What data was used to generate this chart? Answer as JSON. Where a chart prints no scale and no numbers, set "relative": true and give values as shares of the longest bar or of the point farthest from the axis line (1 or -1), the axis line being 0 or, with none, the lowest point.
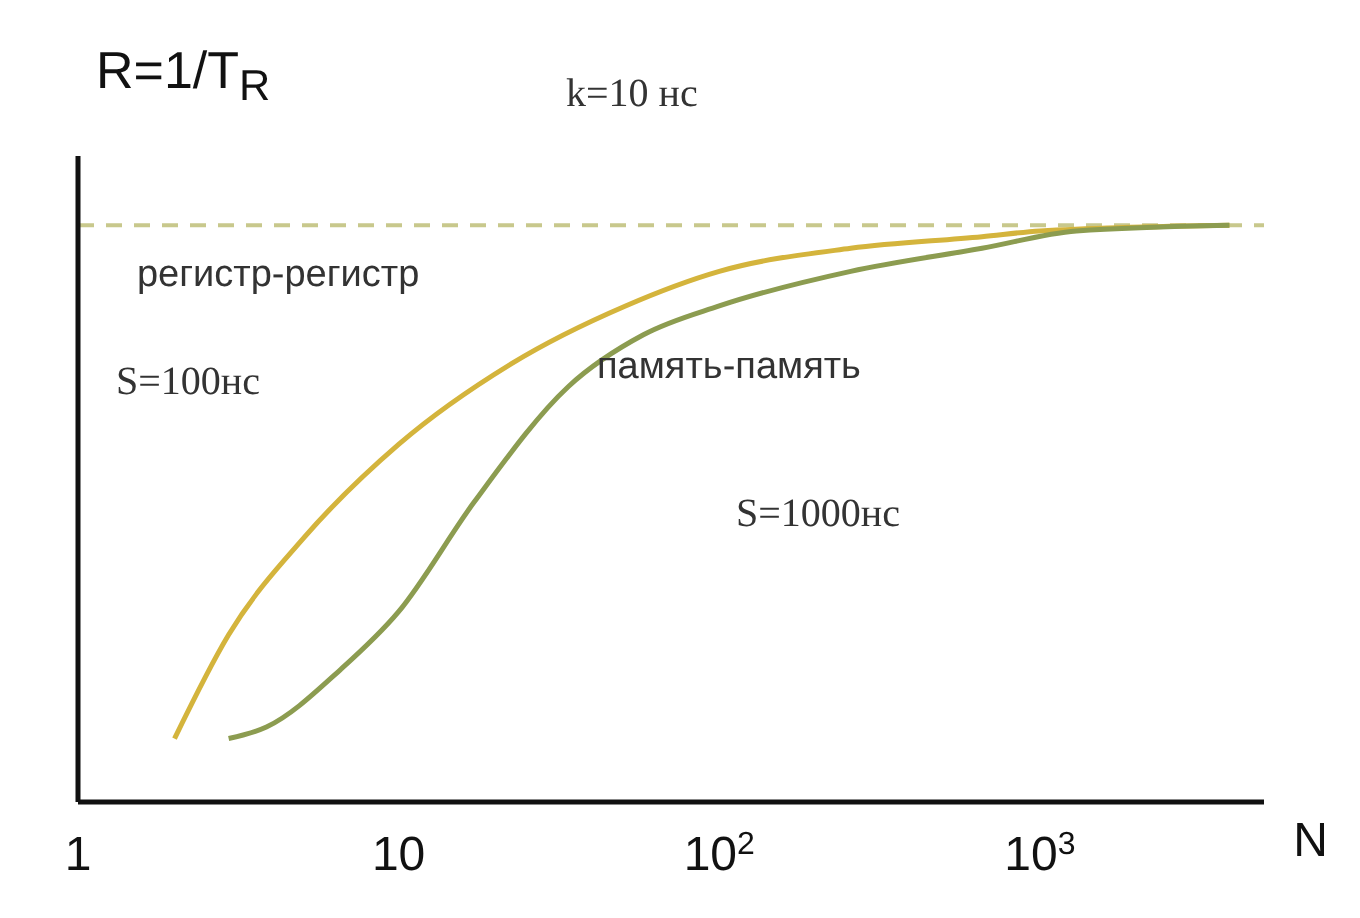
{
  "chart_data": {
    "type": "line",
    "ylabel": "R=1/T$_{R}$",
    "xlabel": "N",
    "log": "x",
    "relative": true,
    "xlim": [
      1,
      5000
    ],
    "xticks": [
      1,
      10,
      {
        "value": 100,
        "label": "10$^{2}$"
      },
      {
        "value": 1000,
        "label": "10$^{3}$"
      }
    ],
    "grid": false,
    "marker": "none",
    "line_style": "solid",
    "series": [
      {
        "name": "регистр-регистр",
        "color": "#d4b43c",
        "x": [
          2,
          2.95,
          5.1,
          10,
          22.5,
          51,
          100,
          257,
          660,
          1000,
          3900
        ],
        "values": [
          0.11,
          0.29,
          0.46,
          0.62,
          0.76,
          0.86,
          0.92,
          0.96,
          0.98,
          0.99,
          1
        ]
      },
      {
        "name": "память-память",
        "color": "#8c9c50",
        "x": [
          2.95,
          3.87,
          6.6,
          10,
          17.2,
          33.8,
          58,
          100,
          257,
          660,
          1300,
          3900
        ],
        "values": [
          0.11,
          0.13,
          0.23,
          0.33,
          0.52,
          0.72,
          0.81,
          0.86,
          0.92,
          0.96,
          0.99,
          1
        ]
      }
    ],
    "ref_lines": [
      {
        "axis": "y",
        "value": 1,
        "color": "#c8c88c",
        "line_style": "dashed"
      }
    ],
    "annotations": [
      "k=10 нс",
      "S=100нс",
      "S=1000нс"
    ]
  }
}
